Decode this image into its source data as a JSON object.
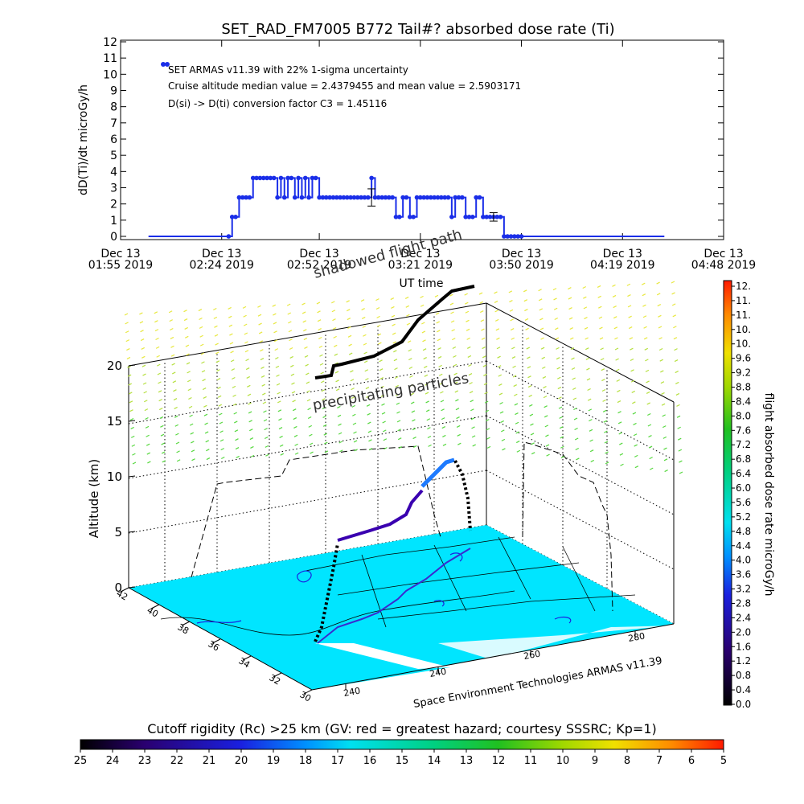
{
  "colors": {
    "series": "#1a2ee8",
    "ground": "#00e5ff",
    "path_low": "#3a00b0",
    "path_high": "#1e7bff",
    "ink": "#000000"
  },
  "chart_data": [
    {
      "type": "scatter",
      "title": "SET_RAD_FM7005   B772 Tail#? absorbed dose rate (Ti)",
      "xlabel": "UT time",
      "ylabel": "dD(Ti)/dt microGy/h",
      "ylim": [
        0,
        12
      ],
      "xlim": [
        "01:55",
        "04:48"
      ],
      "y_ticks": [
        0,
        1,
        2,
        3,
        4,
        5,
        6,
        7,
        8,
        9,
        10,
        11,
        12
      ],
      "x_ticks": [
        {
          "t": "01:55",
          "top": "Dec 13",
          "bottom": "01:55 2019"
        },
        {
          "t": "02:24",
          "top": "Dec 13",
          "bottom": "02:24 2019"
        },
        {
          "t": "02:52",
          "top": "Dec 13",
          "bottom": "02:52 2019"
        },
        {
          "t": "03:21",
          "top": "Dec 13",
          "bottom": "03:21 2019"
        },
        {
          "t": "03:50",
          "top": "Dec 13",
          "bottom": "03:50 2019"
        },
        {
          "t": "04:19",
          "top": "Dec 13",
          "bottom": "04:19 2019"
        },
        {
          "t": "04:48",
          "top": "Dec 13",
          "bottom": "04:48 2019"
        }
      ],
      "legend": [
        "SET ARMAS v11.39 with 22% 1-sigma uncertainty",
        "Cruise altitude median value = 2.4379455 and mean value = 2.5903171",
        "D(si) -> D(ti) conversion factor C3 = 1.45116"
      ],
      "legend_position": "top-left",
      "grid": false,
      "series": [
        {
          "name": "SET ARMAS v11.39",
          "x": [
            "02:03",
            "02:26",
            "02:27",
            "02:28",
            "02:29",
            "02:30",
            "02:31",
            "02:32",
            "02:33",
            "02:34",
            "02:35",
            "02:36",
            "02:37",
            "02:38",
            "02:39",
            "02:40",
            "02:41",
            "02:42",
            "02:43",
            "02:44",
            "02:45",
            "02:46",
            "02:47",
            "02:48",
            "02:49",
            "02:50",
            "02:51",
            "02:52",
            "02:53",
            "02:54",
            "02:55",
            "02:56",
            "02:57",
            "02:58",
            "02:59",
            "03:00",
            "03:01",
            "03:02",
            "03:03",
            "03:04",
            "03:05",
            "03:06",
            "03:07",
            "03:08",
            "03:09",
            "03:10",
            "03:11",
            "03:12",
            "03:13",
            "03:14",
            "03:15",
            "03:16",
            "03:17",
            "03:18",
            "03:19",
            "03:20",
            "03:21",
            "03:22",
            "03:23",
            "03:24",
            "03:25",
            "03:26",
            "03:27",
            "03:28",
            "03:29",
            "03:30",
            "03:31",
            "03:32",
            "03:33",
            "03:34",
            "03:35",
            "03:36",
            "03:37",
            "03:38",
            "03:39",
            "03:40",
            "03:41",
            "03:42",
            "03:43",
            "03:44",
            "03:45",
            "03:46",
            "03:47",
            "03:48",
            "03:49",
            "03:50",
            "04:31"
          ],
          "y": [
            0,
            0,
            1.2,
            1.2,
            2.4,
            2.4,
            2.4,
            2.4,
            3.6,
            3.6,
            3.6,
            3.6,
            3.6,
            3.6,
            3.6,
            2.4,
            3.6,
            2.4,
            3.6,
            3.6,
            2.4,
            3.6,
            2.4,
            3.6,
            2.4,
            3.6,
            3.6,
            2.4,
            2.4,
            2.4,
            2.4,
            2.4,
            2.4,
            2.4,
            2.4,
            2.4,
            2.4,
            2.4,
            2.4,
            2.4,
            2.4,
            2.4,
            3.6,
            2.4,
            2.4,
            2.4,
            2.4,
            2.4,
            2.4,
            1.2,
            1.2,
            2.4,
            2.4,
            1.2,
            1.2,
            2.4,
            2.4,
            2.4,
            2.4,
            2.4,
            2.4,
            2.4,
            2.4,
            2.4,
            2.4,
            1.2,
            2.4,
            2.4,
            2.4,
            1.2,
            1.2,
            1.2,
            2.4,
            2.4,
            1.2,
            1.2,
            1.2,
            1.2,
            1.2,
            1.2,
            0,
            0,
            0,
            0,
            0,
            0,
            0
          ]
        }
      ],
      "error_bars": [
        {
          "x": "03:07",
          "y": 2.4,
          "sigma": 0.53
        },
        {
          "x": "03:42",
          "y": 1.2,
          "sigma": 0.26
        }
      ]
    },
    {
      "type": "surface3d",
      "ylabel": "Altitude (km)",
      "z_ticks": [
        0,
        5,
        10,
        15,
        20
      ],
      "lat_ticks": [
        30,
        32,
        34,
        36,
        38,
        40,
        42
      ],
      "lon_ticks": [
        240,
        240,
        260,
        280
      ],
      "annotations": [
        "shadowed flight path",
        "precipitating particles"
      ],
      "footer": "Space Environment Technologies ARMAS v11.39",
      "dose_colorbar": {
        "label": "flight absorbed dose rate microGy/h",
        "ticks": [
          "12.",
          "11.",
          "11.",
          "10.",
          "10.",
          "9.6",
          "9.2",
          "8.8",
          "8.4",
          "8.0",
          "7.6",
          "7.2",
          "6.8",
          "6.4",
          "6.0",
          "5.6",
          "5.2",
          "4.8",
          "4.4",
          "4.0",
          "3.6",
          "3.2",
          "2.8",
          "2.4",
          "2.0",
          "1.6",
          "1.2",
          "0.8",
          "0.4",
          "0.0"
        ]
      },
      "rigidity_colorbar": {
        "label": "Cutoff rigidity (Rc) >25 km (GV: red = greatest hazard; courtesy SSSRC; Kp=1)",
        "ticks": [
          "25",
          "24",
          "23",
          "22",
          "21",
          "20",
          "19",
          "18",
          "17",
          "16",
          "15",
          "14",
          "13",
          "12",
          "11",
          "10",
          "9",
          "8",
          "7",
          "6",
          "5"
        ]
      }
    }
  ]
}
